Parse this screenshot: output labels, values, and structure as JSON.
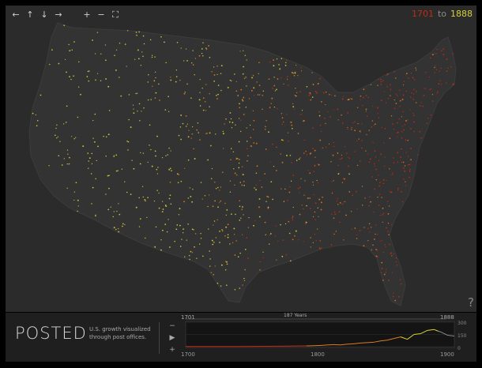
{
  "app": {
    "title": "POSTED",
    "tagline": "U.S. growth visualized through post offices."
  },
  "range": {
    "from": "1701",
    "sep": "to",
    "until": "1888"
  },
  "help": "?",
  "toolbar": {
    "pan_left": "←",
    "pan_up": "↑",
    "pan_down": "↓",
    "pan_right": "→",
    "zoom_in": "+",
    "zoom_out": "−",
    "fullscreen": "⛶"
  },
  "timeline": {
    "start_label": "1701",
    "end_label": "1888",
    "span_label": "187 Years",
    "axis": [
      "1700",
      "1800",
      "1900"
    ],
    "y_ticks": [
      "300",
      "150",
      "0"
    ],
    "controls": {
      "minus": "−",
      "play": "▶",
      "plus": "+"
    }
  },
  "colors": {
    "early": "#c42b12",
    "mid": "#e07a1c",
    "late": "#d8d238",
    "background": "#2b2b2b"
  },
  "chart_data": {
    "type": "line",
    "x": [
      1700,
      1710,
      1720,
      1730,
      1740,
      1750,
      1760,
      1770,
      1780,
      1790,
      1795,
      1800,
      1805,
      1810,
      1815,
      1820,
      1825,
      1830,
      1835,
      1840,
      1845,
      1850,
      1855,
      1860,
      1865,
      1870,
      1875,
      1880,
      1885,
      1888,
      1890,
      1895,
      1900
    ],
    "y": [
      2,
      2,
      3,
      3,
      3,
      4,
      5,
      6,
      8,
      10,
      12,
      15,
      20,
      25,
      22,
      30,
      35,
      45,
      50,
      55,
      70,
      80,
      100,
      120,
      90,
      150,
      160,
      200,
      210,
      190,
      180,
      140,
      130
    ],
    "xlim": [
      1700,
      1900
    ],
    "ylim": [
      0,
      300
    ]
  }
}
